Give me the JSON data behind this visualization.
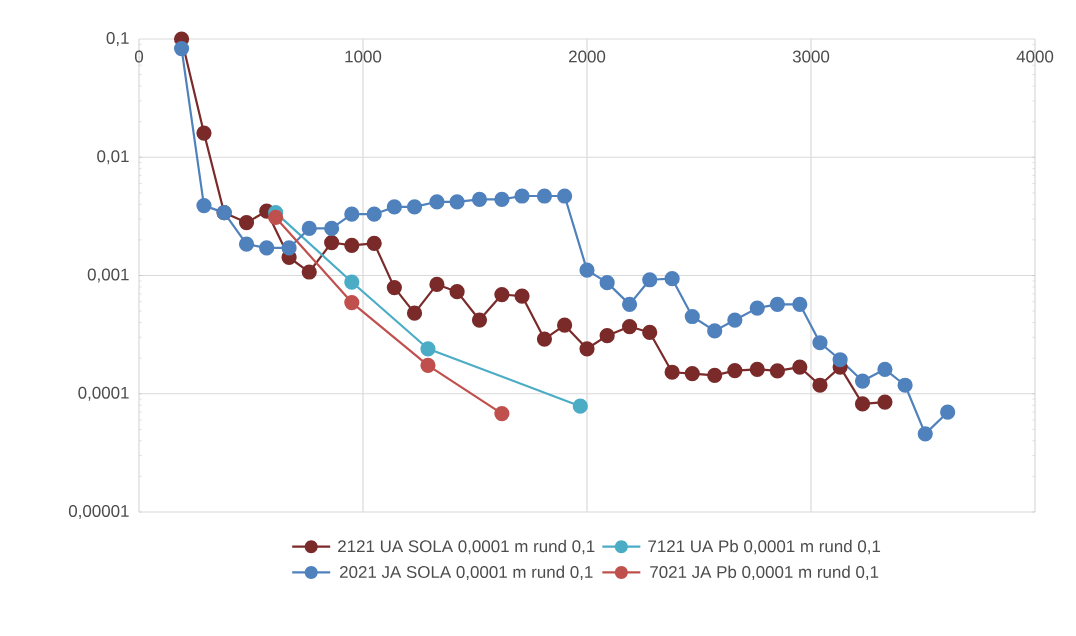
{
  "chart_data": {
    "type": "line",
    "log": "y",
    "grid": true,
    "legend": "bottom",
    "marker": "circle",
    "line_style": "solid",
    "xlim": [
      0,
      4000
    ],
    "xticks": [
      0,
      1000,
      2000,
      3000,
      4000
    ],
    "ylim": [
      1e-05,
      0.1
    ],
    "yticks": [
      {
        "value": 1e-05,
        "label": "0,00001"
      },
      {
        "value": 0.0001,
        "label": "0,0001"
      },
      {
        "value": 0.001,
        "label": "0,001"
      },
      {
        "value": 0.01,
        "label": "0,01"
      },
      {
        "value": 0.1,
        "label": "0,1"
      }
    ],
    "series": [
      {
        "name": "2121 UA SOLA 0,0001 m rund 0,1",
        "color": "#7b2a2a",
        "x": [
          190,
          290,
          380,
          480,
          570,
          670,
          760,
          860,
          950,
          1050,
          1140,
          1230,
          1330,
          1420,
          1520,
          1620,
          1710,
          1810,
          1900,
          2000,
          2090,
          2190,
          2280,
          2380,
          2470,
          2570,
          2660,
          2760,
          2850,
          2950,
          3040,
          3130,
          3230,
          3330
        ],
        "values": [
          0.1,
          0.016,
          0.0034,
          0.0028,
          0.0035,
          0.00142,
          0.00107,
          0.0019,
          0.0018,
          0.00187,
          0.00079,
          0.00048,
          0.00084,
          0.00073,
          0.00042,
          0.00069,
          0.00067,
          0.00029,
          0.00038,
          0.00024,
          0.00031,
          0.00037,
          0.00033,
          0.000152,
          0.000148,
          0.000143,
          0.000157,
          0.000161,
          0.000156,
          0.000168,
          0.000118,
          0.000168,
          8.2e-05,
          8.5e-05
        ]
      },
      {
        "name": "7121 UA Pb 0,0001 m rund 0,1",
        "color": "#4bacc6",
        "x": [
          610,
          950,
          1290,
          1970
        ],
        "values": [
          0.0034,
          0.00088,
          0.00024,
          7.85e-05
        ]
      },
      {
        "name": "2021 JA SOLA 0,0001 m rund 0,1",
        "color": "#4f81bd",
        "x": [
          190,
          290,
          380,
          480,
          570,
          670,
          760,
          860,
          950,
          1050,
          1140,
          1230,
          1330,
          1420,
          1520,
          1620,
          1710,
          1810,
          1900,
          2000,
          2090,
          2190,
          2280,
          2380,
          2470,
          2570,
          2660,
          2760,
          2850,
          2950,
          3040,
          3130,
          3230,
          3330,
          3420,
          3510,
          3610
        ],
        "values": [
          0.083,
          0.0039,
          0.0034,
          0.00184,
          0.00171,
          0.00171,
          0.0025,
          0.0025,
          0.0033,
          0.0033,
          0.0038,
          0.0038,
          0.0042,
          0.0042,
          0.0044,
          0.0044,
          0.0047,
          0.0047,
          0.0047,
          0.00111,
          0.00087,
          0.00057,
          0.00092,
          0.00094,
          0.00045,
          0.00034,
          0.00042,
          0.00053,
          0.00057,
          0.00057,
          0.00027,
          0.000194,
          0.000128,
          0.000161,
          0.000118,
          4.58e-05,
          6.98e-05
        ]
      },
      {
        "name": "7021 JA Pb 0,0001 m rund 0,1",
        "color": "#c0504d",
        "x": [
          610,
          950,
          1290,
          1620
        ],
        "values": [
          0.0031,
          0.00059,
          0.000174,
          6.8e-05
        ]
      }
    ]
  }
}
